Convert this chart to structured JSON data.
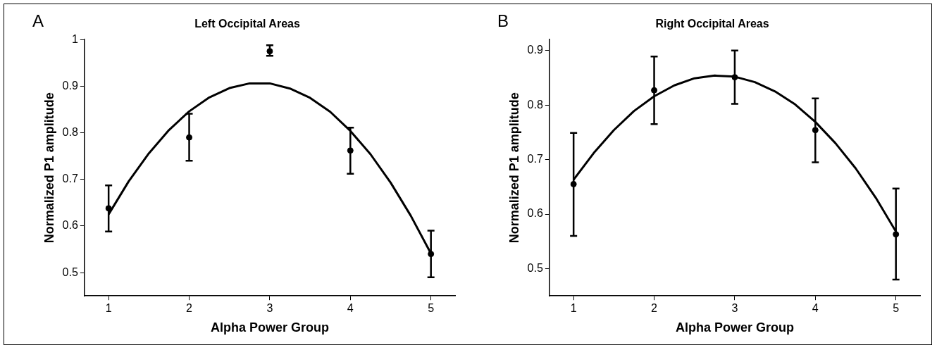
{
  "chart_data": [
    {
      "type": "scatter",
      "title": "Left Occipital Areas",
      "xlabel": "Alpha Power Group",
      "ylabel": "Normalized P1 amplitude",
      "annotations": [
        "A"
      ],
      "xlim": [
        0.7,
        5.3
      ],
      "xticks": [
        1,
        2,
        3,
        4,
        5
      ],
      "ylim": [
        0.45,
        1
      ],
      "yticks": [
        0.5,
        0.6,
        0.7,
        0.8,
        0.9,
        1
      ],
      "grid": false,
      "legend": false,
      "marker": "circle",
      "series": [
        {
          "color": "#000000",
          "x": [
            1,
            2,
            3,
            4,
            5
          ],
          "values": [
            0.638,
            0.79,
            0.975,
            0.762,
            0.54
          ],
          "errors": [
            [
              0.588,
              0.687
            ],
            [
              0.74,
              0.841
            ],
            [
              0.965,
              0.988
            ],
            [
              0.712,
              0.811
            ],
            [
              0.49,
              0.59
            ]
          ]
        },
        {
          "type": "line",
          "color": "#000000",
          "marker": "none",
          "x": [
            1,
            1.25,
            1.5,
            1.75,
            2,
            2.25,
            2.5,
            2.75,
            3,
            3.25,
            3.5,
            3.75,
            4,
            4.25,
            4.5,
            4.75,
            5
          ],
          "values": [
            0.625,
            0.696,
            0.756,
            0.806,
            0.846,
            0.876,
            0.896,
            0.906,
            0.906,
            0.895,
            0.875,
            0.845,
            0.804,
            0.754,
            0.693,
            0.622,
            0.541
          ]
        }
      ]
    },
    {
      "type": "scatter",
      "title": "Right Occipital Areas",
      "xlabel": "Alpha Power Group",
      "ylabel": "Normalized P1 amplitude",
      "annotations": [
        "B"
      ],
      "xlim": [
        0.7,
        5.3
      ],
      "xticks": [
        1,
        2,
        3,
        4,
        5
      ],
      "ylim": [
        0.45,
        0.92
      ],
      "yticks": [
        0.5,
        0.6,
        0.7,
        0.8,
        0.9
      ],
      "grid": false,
      "legend": false,
      "marker": "circle",
      "series": [
        {
          "color": "#000000",
          "x": [
            1,
            2,
            3,
            4,
            5
          ],
          "values": [
            0.655,
            0.827,
            0.851,
            0.754,
            0.563
          ],
          "errors": [
            [
              0.56,
              0.749
            ],
            [
              0.765,
              0.889
            ],
            [
              0.802,
              0.9
            ],
            [
              0.695,
              0.812
            ],
            [
              0.48,
              0.647
            ]
          ]
        },
        {
          "type": "line",
          "color": "#000000",
          "marker": "none",
          "x": [
            1,
            1.25,
            1.5,
            1.75,
            2,
            2.25,
            2.5,
            2.75,
            3,
            3.25,
            3.5,
            3.75,
            4,
            4.25,
            4.5,
            4.75,
            5
          ],
          "values": [
            0.663,
            0.712,
            0.754,
            0.789,
            0.816,
            0.836,
            0.849,
            0.854,
            0.852,
            0.842,
            0.825,
            0.801,
            0.769,
            0.73,
            0.684,
            0.63,
            0.568
          ]
        }
      ]
    }
  ]
}
